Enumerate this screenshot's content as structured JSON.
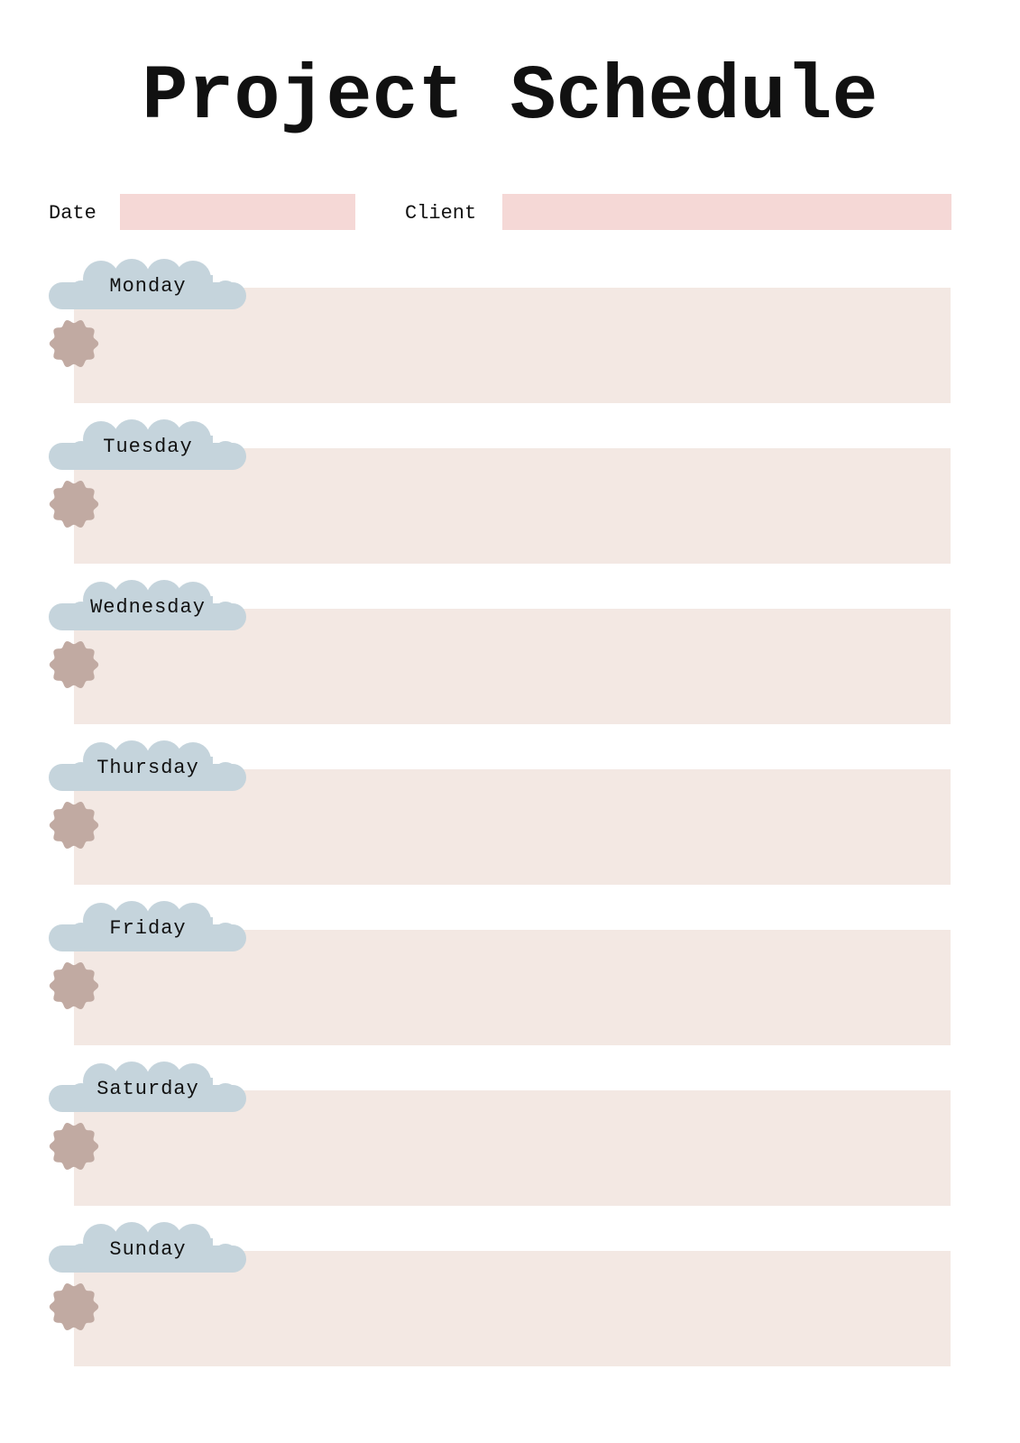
{
  "title": "Project Schedule",
  "fields": {
    "date_label": "Date",
    "date_value": "",
    "client_label": "Client",
    "client_value": ""
  },
  "days": [
    "Monday",
    "Tuesday",
    "Wednesday",
    "Thursday",
    "Friday",
    "Saturday",
    "Sunday"
  ],
  "colors": {
    "field": "#f5d8d6",
    "day_box": "#f3e8e3",
    "cloud": "#c5d4dc",
    "bullet": "#c1aaa2"
  }
}
